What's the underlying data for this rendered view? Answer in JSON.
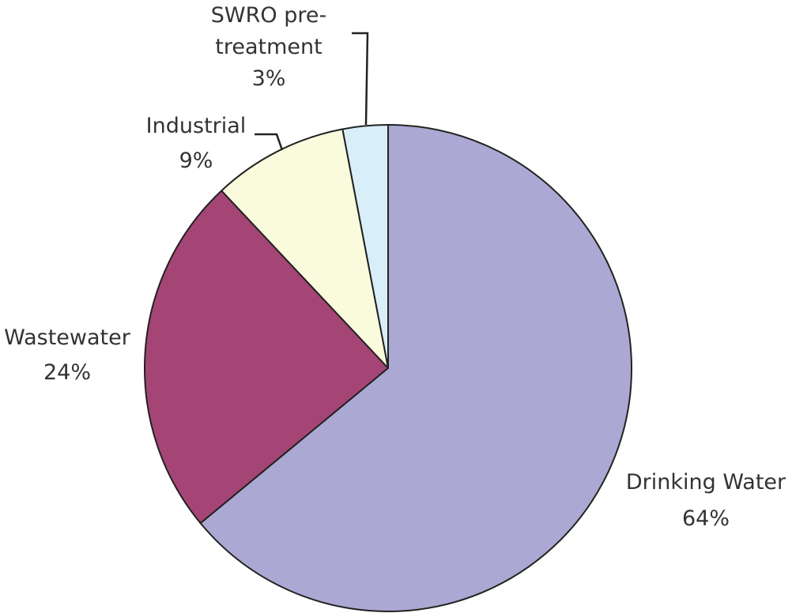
{
  "chart_data": {
    "type": "pie",
    "categories": [
      "Drinking Water",
      "Wastewater",
      "Industrial",
      "SWRO pre-treatment"
    ],
    "values": [
      64,
      24,
      9,
      3
    ],
    "value_labels": [
      "64%",
      "24%",
      "9%",
      "3%"
    ],
    "colors": [
      "#aba8d3",
      "#a54575",
      "#fafadc",
      "#d8eef8"
    ]
  }
}
